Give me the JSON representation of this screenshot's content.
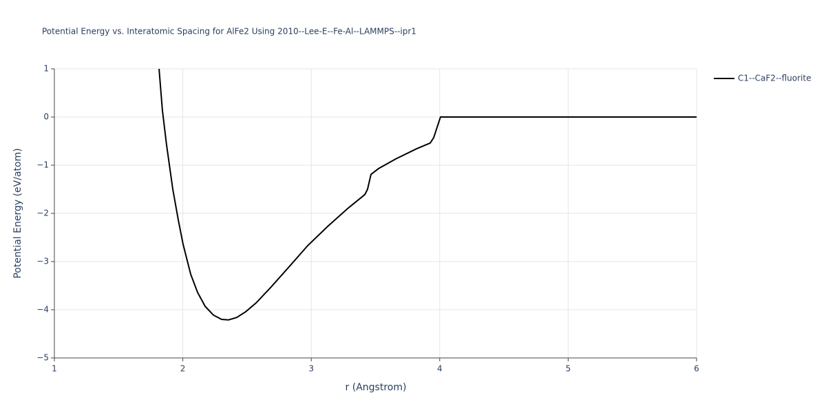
{
  "chart_data": {
    "type": "line",
    "title": "Potential Energy vs. Interatomic Spacing for AlFe2 Using 2010--Lee-E--Fe-Al--LAMMPS--ipr1",
    "x_label": "r (Angstrom)",
    "y_label": "Potential Energy (eV/atom)",
    "xlim": [
      1,
      6
    ],
    "ylim": [
      -5,
      1
    ],
    "xticks": [
      1,
      2,
      3,
      4,
      5,
      6
    ],
    "yticks": [
      1,
      0,
      {
        "value": -1,
        "label": "−1"
      },
      {
        "value": -2,
        "label": "−2"
      },
      {
        "value": -3,
        "label": "−3"
      },
      {
        "value": -4,
        "label": "−4"
      },
      {
        "value": -5,
        "label": "−5"
      }
    ],
    "grid": true,
    "legend": "right",
    "series": [
      {
        "name": "C1--CaF2--fluorite",
        "color": "#000000",
        "x": [
          1.815,
          1.841,
          1.873,
          1.922,
          1.965,
          2.002,
          2.061,
          2.115,
          2.174,
          2.238,
          2.302,
          2.356,
          2.42,
          2.49,
          2.57,
          2.683,
          2.827,
          2.972,
          3.128,
          3.283,
          3.417,
          3.438,
          3.465,
          3.524,
          3.658,
          3.819,
          3.926,
          3.953,
          3.974,
          4.006,
          6
        ],
        "values": [
          1.0,
          0.14,
          -0.57,
          -1.5,
          -2.14,
          -2.64,
          -3.26,
          -3.64,
          -3.93,
          -4.11,
          -4.2,
          -4.21,
          -4.16,
          -4.04,
          -3.86,
          -3.54,
          -3.11,
          -2.67,
          -2.27,
          -1.9,
          -1.61,
          -1.5,
          -1.19,
          -1.07,
          -0.87,
          -0.66,
          -0.54,
          -0.43,
          -0.26,
          0.0,
          0.0
        ]
      }
    ]
  }
}
